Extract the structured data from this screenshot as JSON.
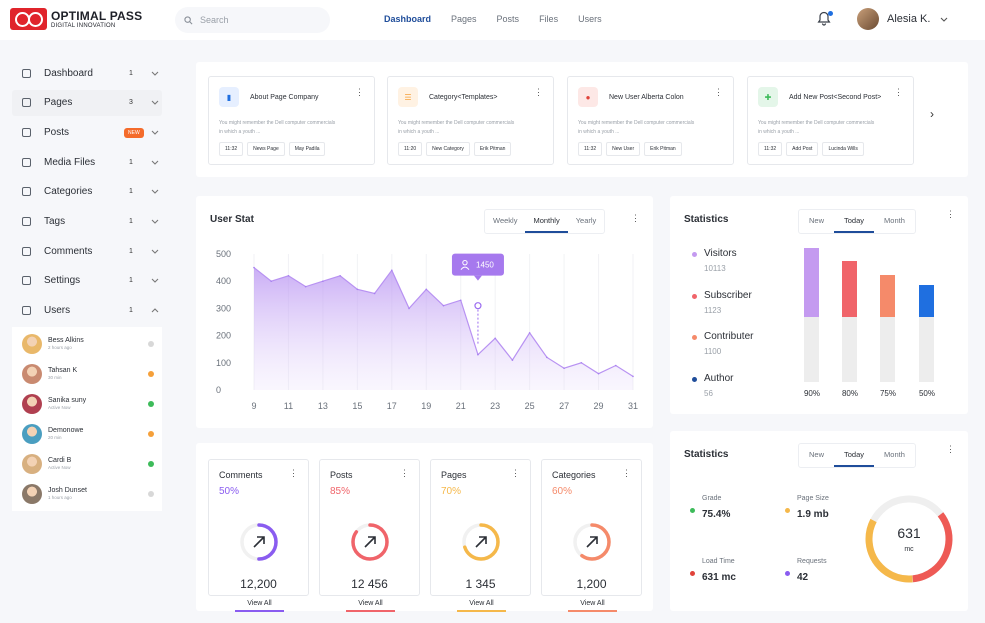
{
  "brand": {
    "title": "OPTIMAL PASS",
    "subtitle": "DIGITAL INNOVATION"
  },
  "search": {
    "placeholder": "Search"
  },
  "nav": [
    "Dashboard",
    "Pages",
    "Posts",
    "Files",
    "Users"
  ],
  "user": {
    "name": "Alesia K."
  },
  "sidebar": {
    "items": [
      {
        "label": "Dashboard",
        "count": "1",
        "icon": "grid-icon"
      },
      {
        "label": "Pages",
        "count": "3",
        "icon": "page-icon"
      },
      {
        "label": "Posts",
        "badge": "NEW",
        "icon": "post-icon"
      },
      {
        "label": "Media Files",
        "count": "1",
        "icon": "folder-icon"
      },
      {
        "label": "Categories",
        "count": "1",
        "icon": "list-icon"
      },
      {
        "label": "Tags",
        "count": "1",
        "icon": "tag-icon"
      },
      {
        "label": "Comments",
        "count": "1",
        "icon": "comment-icon"
      },
      {
        "label": "Settings",
        "count": "1",
        "icon": "gear-icon"
      },
      {
        "label": "Users",
        "count": "1",
        "icon": "user-icon"
      }
    ],
    "users": [
      {
        "name": "Bess Alkins",
        "status": "2 hours ago",
        "dot": "#d8d8d8"
      },
      {
        "name": "Tahsan K",
        "status": "30 min",
        "dot": "#f5a03a"
      },
      {
        "name": "Sanika suny",
        "status": "Active Now",
        "dot": "#3dbb5a"
      },
      {
        "name": "Demonowe",
        "status": "20 min",
        "dot": "#f5a03a"
      },
      {
        "name": "Cardi B",
        "status": "Active Now",
        "dot": "#3dbb5a"
      },
      {
        "name": "Josh Dunset",
        "status": "1 hours ago",
        "dot": "#d8d8d8"
      }
    ]
  },
  "activity": [
    {
      "title": "About Page Company",
      "desc": "You might remember the Dell computer commercials in which a youth ...",
      "tags": [
        "11:32",
        "News Page",
        "May Padila"
      ],
      "icon_bg": "#e6efff",
      "icon_color": "#1f6fe0",
      "icon": "file-icon"
    },
    {
      "title": "Category<Templates>",
      "desc": "You might remember the Dell computer commercials in which a youth ...",
      "tags": [
        "11:20",
        "New Category",
        "Erik Pitman"
      ],
      "icon_bg": "#fff2e3",
      "icon_color": "#f5a03a",
      "icon": "list-icon"
    },
    {
      "title": "New User Alberta Colon",
      "desc": "You might remember the Dell computer commercials in which a youth ...",
      "tags": [
        "11:32",
        "New User",
        "Erik Pitman"
      ],
      "icon_bg": "#fde8e6",
      "icon_color": "#e0433a",
      "icon": "user-icon"
    },
    {
      "title": "Add New Post<Second Post>",
      "desc": "You might remember the Dell computer commercials in which a youth ...",
      "tags": [
        "11:32",
        "Add Post",
        "Lucinda Wills"
      ],
      "icon_bg": "#e4f6e9",
      "icon_color": "#3dbb5a",
      "icon": "doc-add-icon"
    }
  ],
  "user_stat": {
    "title": "User Stat",
    "tabs": [
      "Weekly",
      "Monthly",
      "Yearly"
    ],
    "active_tab": "Monthly",
    "tooltip": "1450"
  },
  "chart_data": {
    "type": "area",
    "x_ticks": [
      "9",
      "11",
      "13",
      "15",
      "17",
      "19",
      "21",
      "23",
      "25",
      "27",
      "29",
      "31"
    ],
    "y_ticks": [
      "0",
      "100",
      "200",
      "300",
      "400",
      "500"
    ],
    "ylim": [
      0,
      500
    ],
    "xlim": [
      9,
      31
    ],
    "x": [
      9,
      10,
      11,
      12,
      13,
      14,
      15,
      16,
      17,
      18,
      19,
      20,
      21,
      22,
      23,
      24,
      25,
      26,
      27,
      28,
      29,
      30,
      31
    ],
    "values": [
      450,
      400,
      420,
      380,
      400,
      420,
      370,
      355,
      440,
      300,
      370,
      310,
      330,
      130,
      190,
      110,
      210,
      120,
      80,
      100,
      60,
      90,
      50
    ],
    "tooltip_x": 22,
    "tooltip_y": 310,
    "color": "#9b6cf0"
  },
  "stats1": {
    "title": "Statistics",
    "tabs": [
      "New",
      "Today",
      "Month"
    ],
    "active_tab": "Today",
    "legend": [
      {
        "label": "Visitors",
        "value": "10113",
        "color": "#c49af0"
      },
      {
        "label": "Subscriber",
        "value": "1123",
        "color": "#f0646a"
      },
      {
        "label": "Contributer",
        "value": "1100",
        "color": "#f58a6a"
      },
      {
        "label": "Author",
        "value": "56",
        "color": "#1f4d9a"
      }
    ],
    "bars": [
      {
        "pct": "90%",
        "value": 0.9,
        "color": "#c49af0"
      },
      {
        "pct": "80%",
        "value": 0.8,
        "color": "#f0646a"
      },
      {
        "pct": "75%",
        "value": 0.75,
        "color": "#f58a6a"
      },
      {
        "pct": "50%",
        "value": 0.5,
        "color": "#1f6fe0"
      }
    ]
  },
  "stats2": {
    "title": "Statistics",
    "tabs": [
      "New",
      "Today",
      "Month"
    ],
    "active_tab": "Today",
    "metrics": [
      {
        "label": "Grade",
        "value": "75.4%",
        "color": "#3dbb5a"
      },
      {
        "label": "Page Size",
        "value": "1.9 mb",
        "color": "#f5b84a"
      },
      {
        "label": "Load Time",
        "value": "631 mc",
        "color": "#e0433a"
      },
      {
        "label": "Requests",
        "value": "42",
        "color": "#8a5cf0"
      }
    ],
    "gauge": {
      "value": "631",
      "unit": "mc",
      "fraction": 0.68
    }
  },
  "mini_cards": [
    {
      "title": "Comments",
      "pct": "50%",
      "value": "12,200",
      "link": "View All",
      "color": "#8a5cf0",
      "fraction": 0.5
    },
    {
      "title": "Posts",
      "pct": "85%",
      "value": "12 456",
      "link": "View All",
      "color": "#f0646a",
      "fraction": 0.85
    },
    {
      "title": "Pages",
      "pct": "70%",
      "value": "1 345",
      "link": "View All",
      "color": "#f5b84a",
      "fraction": 0.7
    },
    {
      "title": "Categories",
      "pct": "60%",
      "value": "1,200",
      "link": "View All",
      "color": "#f58a6a",
      "fraction": 0.6
    }
  ]
}
